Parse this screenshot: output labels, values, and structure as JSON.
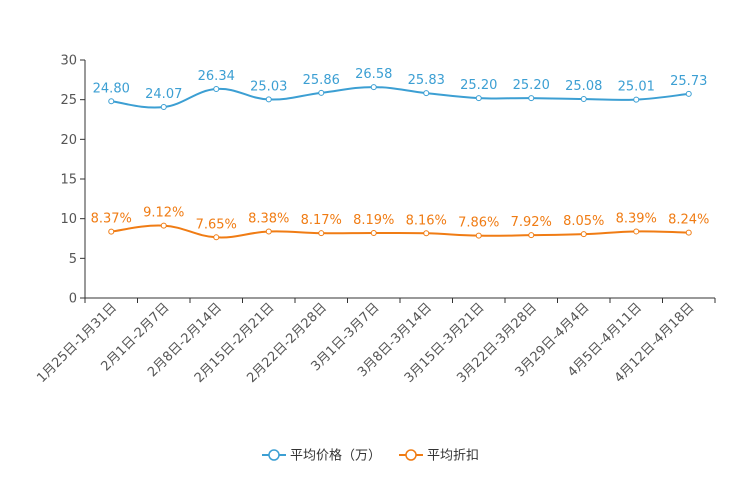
{
  "chart_data": {
    "type": "line",
    "title": "",
    "xlabel": "",
    "ylabel": "",
    "ylim": [
      0,
      30
    ],
    "yticks": [
      0,
      5,
      10,
      15,
      20,
      25,
      30
    ],
    "grid": false,
    "legend_position": "bottom",
    "categories": [
      "1月25日-1月31日",
      "2月1日-2月7日",
      "2月8日-2月14日",
      "2月15日-2月21日",
      "2月22日-2月28日",
      "3月1日-3月7日",
      "3月8日-3月14日",
      "3月15日-3月21日",
      "3月22日-3月28日",
      "3月29日-4月4日",
      "4月5日-4月11日",
      "4月12日-4月18日"
    ],
    "series": [
      {
        "name": "平均价格（万）",
        "color": "#3c9fd3",
        "values": [
          24.8,
          24.07,
          26.34,
          25.03,
          25.86,
          26.58,
          25.83,
          25.2,
          25.2,
          25.08,
          25.01,
          25.73
        ],
        "labels": [
          "24.80",
          "24.07",
          "26.34",
          "25.03",
          "25.86",
          "26.58",
          "25.83",
          "25.20",
          "25.20",
          "25.08",
          "25.01",
          "25.73"
        ]
      },
      {
        "name": "平均折扣",
        "color": "#f07c14",
        "values": [
          8.37,
          9.12,
          7.65,
          8.38,
          8.17,
          8.19,
          8.16,
          7.86,
          7.92,
          8.05,
          8.39,
          8.24
        ],
        "labels": [
          "8.37%",
          "9.12%",
          "7.65%",
          "8.38%",
          "8.17%",
          "8.19%",
          "8.16%",
          "7.86%",
          "7.92%",
          "8.05%",
          "8.39%",
          "8.24%"
        ]
      }
    ]
  }
}
